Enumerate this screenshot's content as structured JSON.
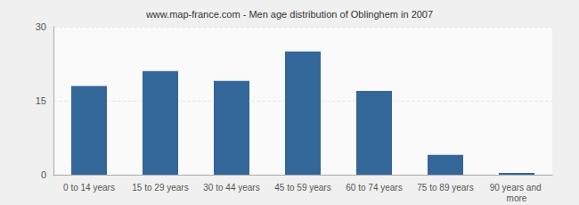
{
  "chart_data": {
    "type": "bar",
    "title": "www.map-france.com - Men age distribution of Oblinghem in 2007",
    "categories": [
      "0 to 14 years",
      "15 to 29 years",
      "30 to 44 years",
      "45 to 59 years",
      "60 to 74 years",
      "75 to 89 years",
      "90 years and more"
    ],
    "values": [
      18,
      21,
      19,
      25,
      17,
      4,
      0
    ],
    "color": "#336699",
    "ylim": [
      0,
      30
    ],
    "yticks": [
      0,
      15,
      30
    ],
    "grid": true
  }
}
